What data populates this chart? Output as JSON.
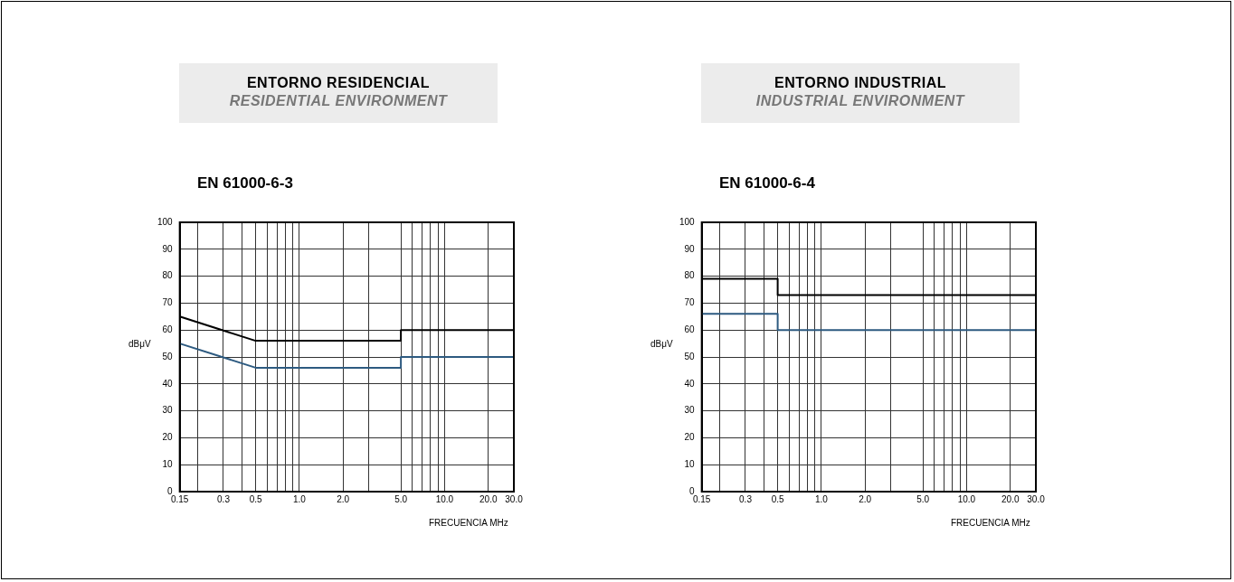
{
  "chart_data": [
    {
      "type": "line",
      "title": "ENTORNO RESIDENCIAL",
      "subtitle": "RESIDENTIAL ENVIRONMENT",
      "annotations": [
        "EN 61000-6-3"
      ],
      "xlabel": "FRECUENCIA MHz",
      "ylabel": "dBμV",
      "log": "x",
      "grid": true,
      "legend": false,
      "marker": "none",
      "line_style": "solid",
      "xlim": [
        0.15,
        30
      ],
      "ylim": [
        0,
        100
      ],
      "xticks": [
        0.15,
        {
          "value": 0.2,
          "label": null
        },
        0.3,
        {
          "value": 0.4,
          "label": null
        },
        0.5,
        {
          "value": 0.6,
          "label": null
        },
        {
          "value": 0.7,
          "label": null
        },
        {
          "value": 0.8,
          "label": null
        },
        {
          "value": 0.9,
          "label": null
        },
        {
          "value": 1,
          "label": "1.0"
        },
        {
          "value": 2,
          "label": "2.0"
        },
        {
          "value": 3,
          "label": null
        },
        {
          "value": 5,
          "label": "5.0"
        },
        {
          "value": 6,
          "label": null
        },
        {
          "value": 7,
          "label": null
        },
        {
          "value": 8,
          "label": null
        },
        {
          "value": 9,
          "label": null
        },
        {
          "value": 10,
          "label": "10.0"
        },
        {
          "value": 20,
          "label": "20.0"
        },
        {
          "value": 30,
          "label": "30.0"
        }
      ],
      "yticks": [
        0,
        10,
        20,
        30,
        40,
        50,
        60,
        70,
        80,
        90,
        100
      ],
      "series": [
        {
          "color": "#000000",
          "x": [
            0.15,
            0.5,
            5,
            5,
            30
          ],
          "values": [
            65,
            56,
            56,
            60,
            60
          ]
        },
        {
          "color": "#2d5a80",
          "x": [
            0.15,
            0.5,
            5,
            5,
            30
          ],
          "values": [
            55,
            46,
            46,
            50,
            50
          ]
        }
      ]
    },
    {
      "type": "line",
      "title": "ENTORNO INDUSTRIAL",
      "subtitle": "INDUSTRIAL ENVIRONMENT",
      "annotations": [
        "EN 61000-6-4"
      ],
      "xlabel": "FRECUENCIA MHz",
      "ylabel": "dBμV",
      "log": "x",
      "grid": true,
      "legend": false,
      "marker": "none",
      "line_style": "solid",
      "xlim": [
        0.15,
        30
      ],
      "ylim": [
        0,
        100
      ],
      "xticks": [
        0.15,
        {
          "value": 0.2,
          "label": null
        },
        0.3,
        {
          "value": 0.4,
          "label": null
        },
        0.5,
        {
          "value": 0.6,
          "label": null
        },
        {
          "value": 0.7,
          "label": null
        },
        {
          "value": 0.8,
          "label": null
        },
        {
          "value": 0.9,
          "label": null
        },
        {
          "value": 1,
          "label": "1.0"
        },
        {
          "value": 2,
          "label": "2.0"
        },
        {
          "value": 3,
          "label": null
        },
        {
          "value": 5,
          "label": "5.0"
        },
        {
          "value": 6,
          "label": null
        },
        {
          "value": 7,
          "label": null
        },
        {
          "value": 8,
          "label": null
        },
        {
          "value": 9,
          "label": null
        },
        {
          "value": 10,
          "label": "10.0"
        },
        {
          "value": 20,
          "label": "20.0"
        },
        {
          "value": 30,
          "label": "30.0"
        }
      ],
      "yticks": [
        0,
        10,
        20,
        30,
        40,
        50,
        60,
        70,
        80,
        90,
        100
      ],
      "series": [
        {
          "color": "#000000",
          "x": [
            0.15,
            0.5,
            0.5,
            30
          ],
          "values": [
            79,
            79,
            73,
            73
          ]
        },
        {
          "color": "#2d5a80",
          "x": [
            0.15,
            0.5,
            0.5,
            30
          ],
          "values": [
            66,
            66,
            60,
            60
          ]
        }
      ]
    }
  ]
}
